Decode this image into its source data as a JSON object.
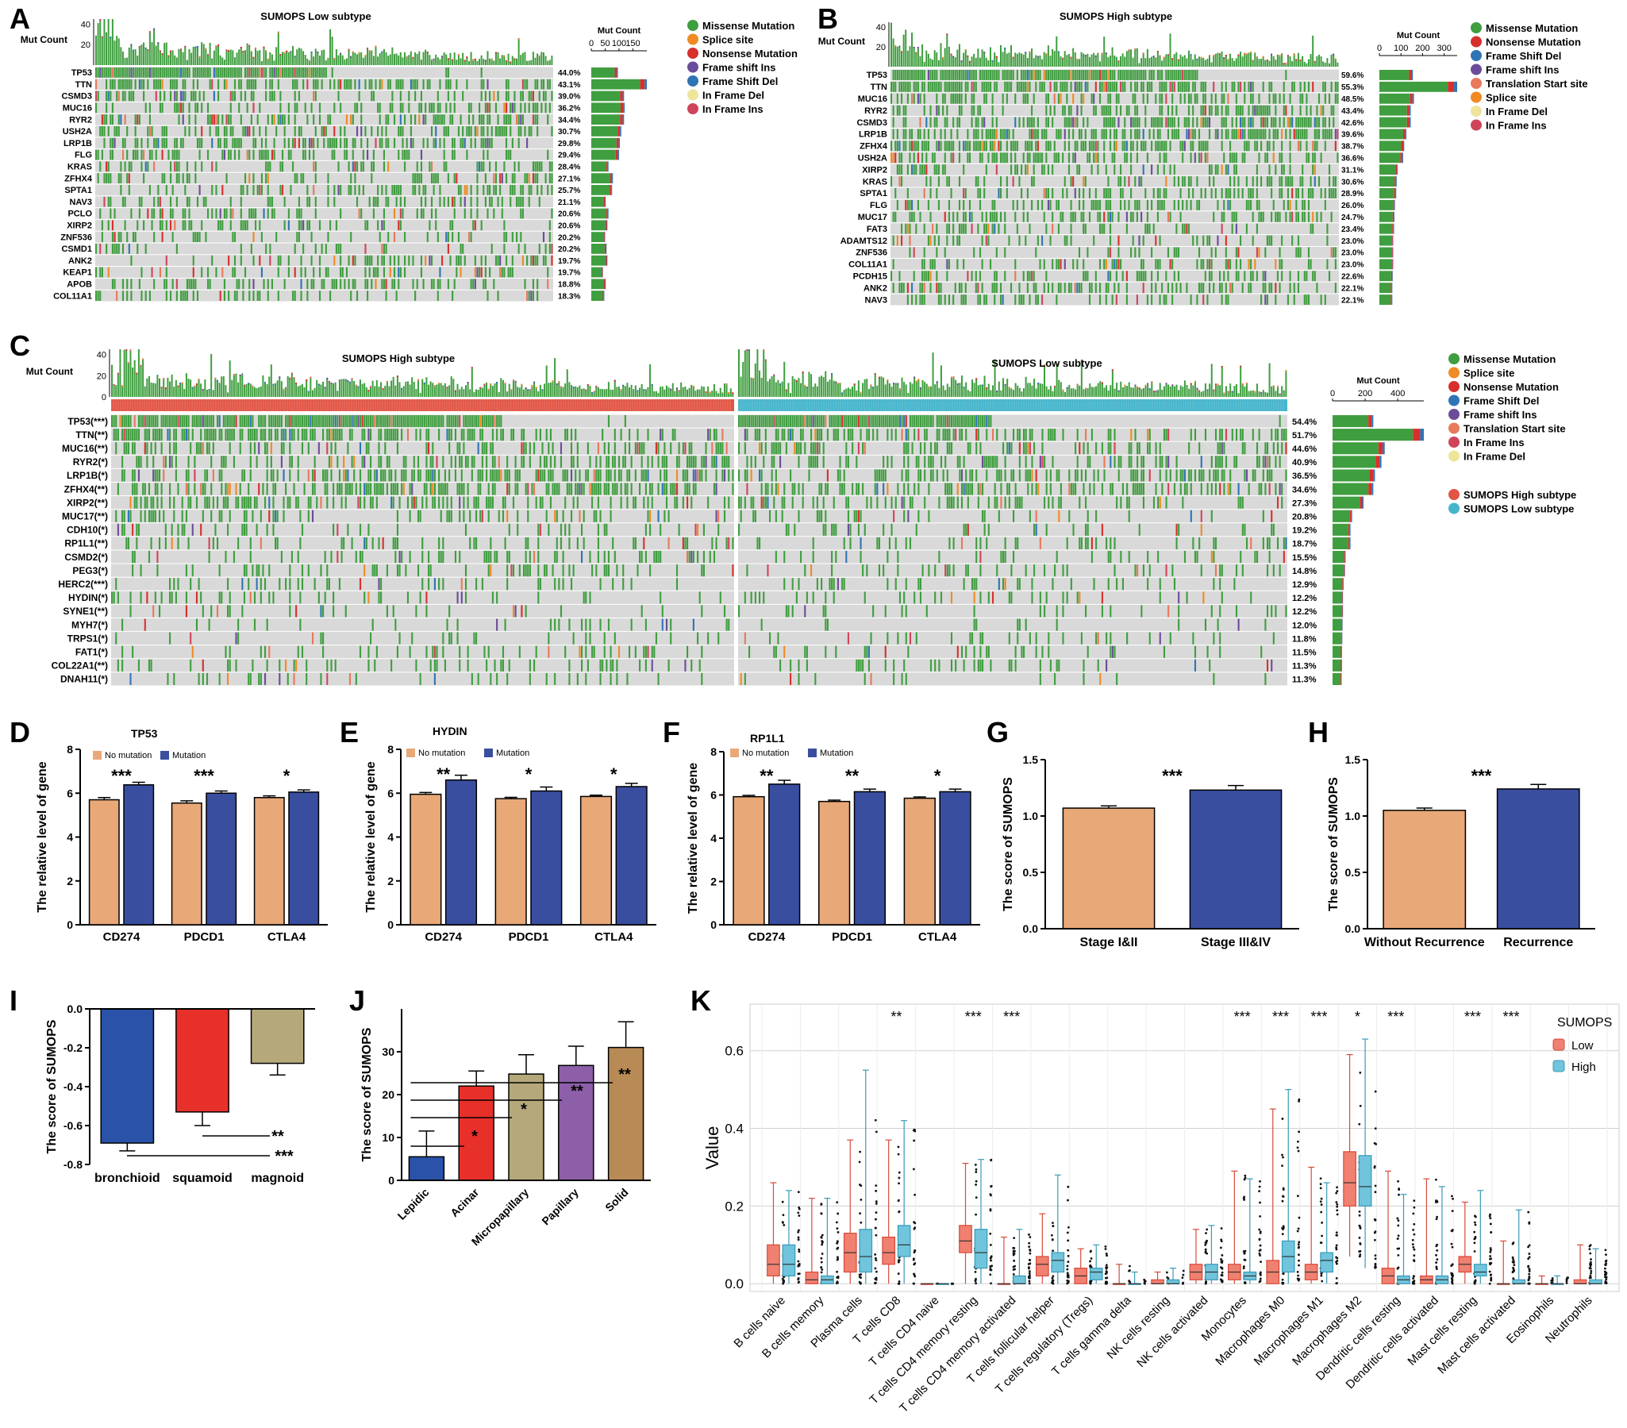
{
  "colors": {
    "missense": "#3f9e3f",
    "nonsense": "#d7302c",
    "splice": "#f08a24",
    "frame_shift_del": "#2f74b5",
    "frame_shift_ins": "#6b4c9a",
    "in_frame_del": "#efe49c",
    "in_frame_ins": "#d0445a",
    "translation_start": "#e8795a",
    "cell_bg": "#d9d9d9",
    "subtype_high": "#e15545",
    "subtype_low": "#45b5cc",
    "bar_orange": "#e8a878",
    "bar_blue": "#3a4ea0",
    "box_low": "#f08070",
    "box_high": "#70c4dc"
  },
  "chart_data": [
    {
      "panel": "A",
      "type": "oncoplot",
      "title": "SUMOPS Low subtype",
      "ylabel": "Mut Count",
      "top_ticks": [
        "40",
        "20"
      ],
      "count_axis_title": "Mut Count",
      "count_ticks": [
        "0",
        "50",
        "100",
        "150"
      ],
      "count_max": 200,
      "genes": [
        "TP53",
        "TTN",
        "CSMD3",
        "MUC16",
        "RYR2",
        "USH2A",
        "LRP1B",
        "FLG",
        "KRAS",
        "ZFHX4",
        "SPTA1",
        "NAV3",
        "PCLO",
        "XIRP2",
        "ZNF536",
        "CSMD1",
        "ANK2",
        "KEAP1",
        "APOB",
        "COL11A1"
      ],
      "percents": [
        "44.0%",
        "43.1%",
        "39.0%",
        "36.2%",
        "34.4%",
        "30.7%",
        "29.8%",
        "29.4%",
        "28.4%",
        "27.1%",
        "25.7%",
        "21.1%",
        "20.6%",
        "20.6%",
        "20.2%",
        "20.2%",
        "19.7%",
        "19.7%",
        "18.8%",
        "18.3%"
      ],
      "counts": [
        96,
        200,
        118,
        120,
        118,
        108,
        103,
        100,
        62,
        78,
        75,
        52,
        62,
        58,
        50,
        55,
        58,
        42,
        52,
        47
      ],
      "legend": [
        "Missense Mutation",
        "Splice site",
        "Nonsense Mutation",
        "Frame shift Ins",
        "Frame Shift Del",
        "In Frame Del",
        "In Frame Ins"
      ]
    },
    {
      "panel": "B",
      "type": "oncoplot",
      "title": "SUMOPS High subtype",
      "ylabel": "Mut Count",
      "top_ticks": [
        "40",
        "20"
      ],
      "count_axis_title": "Mut Count",
      "count_ticks": [
        "0",
        "100",
        "200",
        "300"
      ],
      "count_max": 360,
      "genes": [
        "TP53",
        "TTN",
        "MUC16",
        "RYR2",
        "CSMD3",
        "LRP1B",
        "ZFHX4",
        "USH2A",
        "XIRP2",
        "KRAS",
        "SPTA1",
        "FLG",
        "MUC17",
        "FAT3",
        "ADAMTS12",
        "ZNF536",
        "COL11A1",
        "PCDH15",
        "ANK2",
        "NAV3"
      ],
      "percents": [
        "59.6%",
        "55.3%",
        "48.5%",
        "43.4%",
        "42.6%",
        "39.6%",
        "38.7%",
        "36.6%",
        "31.1%",
        "30.6%",
        "28.9%",
        "26.0%",
        "24.7%",
        "23.4%",
        "23.0%",
        "23.0%",
        "23.0%",
        "22.6%",
        "22.1%",
        "22.1%"
      ],
      "counts": [
        155,
        360,
        160,
        145,
        145,
        125,
        115,
        110,
        85,
        80,
        78,
        72,
        70,
        68,
        64,
        64,
        64,
        62,
        60,
        60
      ],
      "legend": [
        "Missense Mutation",
        "Nonsense Mutation",
        "Frame Shift Del",
        "Frame shift Ins",
        "Translation Start site",
        "Splice site",
        "In Frame Del",
        "In Frame Ins"
      ]
    },
    {
      "panel": "C",
      "type": "oncoplot",
      "titles": [
        "SUMOPS High subtype",
        "SUMOPS Low subtype"
      ],
      "ylabel": "Mut Count",
      "top_ticks": [
        "40",
        "20",
        "0"
      ],
      "count_axis_title": "Mut Count",
      "count_ticks": [
        "0",
        "200",
        "400"
      ],
      "count_max": 560,
      "genes": [
        "TP53(***)",
        "TTN(**)",
        "MUC16(**)",
        "RYR2(*)",
        "LRP1B(*)",
        "ZFHX4(**)",
        "XIRP2(**)",
        "MUC17(**)",
        "CDH10(*)",
        "RP1L1(**)",
        "CSMD2(*)",
        "PEG3(*)",
        "HERC2(***)",
        "HYDIN(*)",
        "SYNE1(**)",
        "MYH7(*)",
        "TRPS1(*)",
        "FAT1(*)",
        "COL22A1(**)",
        "DNAH11(*)"
      ],
      "percents": [
        "54.4%",
        "51.7%",
        "44.6%",
        "40.9%",
        "36.5%",
        "34.6%",
        "27.3%",
        "20.8%",
        "19.2%",
        "18.7%",
        "15.5%",
        "14.8%",
        "12.9%",
        "12.2%",
        "12.2%",
        "12.0%",
        "11.8%",
        "11.5%",
        "11.3%",
        "11.3%"
      ],
      "counts": [
        250,
        560,
        320,
        300,
        260,
        250,
        190,
        120,
        110,
        110,
        80,
        76,
        68,
        64,
        64,
        62,
        60,
        58,
        58,
        56
      ],
      "legend": [
        "Missense Mutation",
        "Splice site",
        "Nonsense Mutation",
        "Frame Shift Del",
        "Frame shift Ins",
        "Translation Start site",
        "In Frame Ins",
        "In Frame Del"
      ],
      "subtype_legend": [
        "SUMOPS High subtype",
        "SUMOPS Low subtype"
      ]
    },
    {
      "panel": "D",
      "type": "bar",
      "title": "TP53",
      "ylabel": "The relative level of gene",
      "ylim": [
        0,
        8
      ],
      "yticks": [
        "0",
        "2",
        "4",
        "6",
        "8"
      ],
      "categories": [
        "CD274",
        "PDCD1",
        "CTLA4"
      ],
      "series": [
        {
          "name": "No mutation",
          "values": [
            5.7,
            5.55,
            5.8
          ],
          "errors": [
            0.1,
            0.1,
            0.08
          ]
        },
        {
          "name": "Mutation",
          "values": [
            6.38,
            6.0,
            6.05
          ],
          "errors": [
            0.12,
            0.1,
            0.1
          ]
        }
      ],
      "significance": [
        "***",
        "***",
        "*"
      ]
    },
    {
      "panel": "E",
      "type": "bar",
      "title": "HYDIN",
      "ylabel": "The relative level of gene",
      "ylim": [
        0,
        8
      ],
      "yticks": [
        "0",
        "2",
        "4",
        "6",
        "8"
      ],
      "categories": [
        "CD274",
        "PDCD1",
        "CTLA4"
      ],
      "series": [
        {
          "name": "No mutation",
          "values": [
            5.95,
            5.75,
            5.85
          ],
          "errors": [
            0.08,
            0.06,
            0.06
          ]
        },
        {
          "name": "Mutation",
          "values": [
            6.6,
            6.1,
            6.3
          ],
          "errors": [
            0.22,
            0.18,
            0.15
          ]
        }
      ],
      "significance": [
        "**",
        "*",
        "*"
      ]
    },
    {
      "panel": "F",
      "type": "bar",
      "title": "RP1L1",
      "ylabel": "The relative level of gene",
      "ylim": [
        0,
        8
      ],
      "yticks": [
        "0",
        "2",
        "4",
        "6",
        "8"
      ],
      "categories": [
        "CD274",
        "PDCD1",
        "CTLA4"
      ],
      "series": [
        {
          "name": "No mutation",
          "values": [
            5.92,
            5.7,
            5.85
          ],
          "errors": [
            0.06,
            0.06,
            0.06
          ]
        },
        {
          "name": "Mutation",
          "values": [
            6.5,
            6.15,
            6.15
          ],
          "errors": [
            0.18,
            0.12,
            0.12
          ]
        }
      ],
      "significance": [
        "**",
        "**",
        "*"
      ]
    },
    {
      "panel": "G",
      "type": "bar",
      "ylabel": "The score of SUMOPS",
      "ylim": [
        0,
        1.5
      ],
      "yticks": [
        "0.0",
        "0.5",
        "1.0",
        "1.5"
      ],
      "categories": [
        "Stage I&II",
        "Stage III&IV"
      ],
      "values": [
        1.07,
        1.23
      ],
      "errors": [
        0.02,
        0.04
      ],
      "significance": "***"
    },
    {
      "panel": "H",
      "type": "bar",
      "ylabel": "The score of SUMOPS",
      "ylim": [
        0,
        1.5
      ],
      "yticks": [
        "0.0",
        "0.5",
        "1.0",
        "1.5"
      ],
      "categories": [
        "Without Recurrence",
        "Recurrence"
      ],
      "values": [
        1.05,
        1.24
      ],
      "errors": [
        0.02,
        0.04
      ],
      "significance": "***"
    },
    {
      "panel": "I",
      "type": "bar",
      "ylabel": "The score of SUMOPS",
      "ylim": [
        -0.8,
        0.0
      ],
      "yticks": [
        "0.0",
        "-0.2",
        "-0.4",
        "-0.6",
        "-0.8"
      ],
      "categories": [
        "bronchioid",
        "squamoid",
        "magnoid"
      ],
      "values": [
        -0.69,
        -0.53,
        -0.28
      ],
      "errors": [
        0.04,
        0.07,
        0.06
      ],
      "significance": [
        "**",
        "***"
      ]
    },
    {
      "panel": "J",
      "type": "bar",
      "ylabel": "The score of SUMOPS",
      "ylim": [
        0,
        40
      ],
      "yticks": [
        "0",
        "10",
        "20",
        "30"
      ],
      "categories": [
        "Lepidic",
        "Acinar",
        "Micropapillary",
        "Papillary",
        "Solid"
      ],
      "values": [
        5.5,
        22,
        24.8,
        26.8,
        31
      ],
      "errors": [
        6,
        3.5,
        4.5,
        4.5,
        6
      ],
      "significance": [
        "*",
        "*",
        "**",
        "**"
      ]
    },
    {
      "panel": "K",
      "type": "box",
      "ylabel": "Value",
      "ylim": [
        -0.02,
        0.72
      ],
      "yticks": [
        "0.0",
        "0.2",
        "0.4",
        "0.6"
      ],
      "legend_title": "SUMOPS",
      "series_names": [
        "Low",
        "High"
      ],
      "categories": [
        "B cells naive",
        "B cells memory",
        "Plasma cells",
        "T cells CD8",
        "T cells CD4 naive",
        "T cells CD4 memory resting",
        "T cells CD4 memory activated",
        "T cells follicular helper",
        "T cells regulatory (Tregs)",
        "T cells gamma delta",
        "NK cells resting",
        "NK cells activated",
        "Monocytes",
        "Macrophages M0",
        "Macrophages M1",
        "Macrophages M2",
        "Dendritic cells resting",
        "Dendritic cells activated",
        "Mast cells resting",
        "Mast cells activated",
        "Eosinophils",
        "Neutrophils"
      ],
      "significance": [
        "",
        "",
        "",
        "**",
        "",
        "***",
        "***",
        "",
        "",
        "",
        "",
        "",
        "***",
        "***",
        "***",
        "*",
        "***",
        "",
        "***",
        "***",
        "",
        ""
      ],
      "low": [
        [
          0.0,
          0.02,
          0.05,
          0.1,
          0.26
        ],
        [
          0.0,
          0.0,
          0.01,
          0.03,
          0.22
        ],
        [
          0.0,
          0.03,
          0.08,
          0.13,
          0.37
        ],
        [
          0.0,
          0.05,
          0.08,
          0.12,
          0.37
        ],
        [
          0.0,
          0.0,
          0.0,
          0.0,
          0.0
        ],
        [
          0.0,
          0.08,
          0.11,
          0.15,
          0.31
        ],
        [
          0.0,
          0.0,
          0.0,
          0.0,
          0.12
        ],
        [
          0.0,
          0.02,
          0.05,
          0.07,
          0.18
        ],
        [
          0.0,
          0.0,
          0.02,
          0.04,
          0.09
        ],
        [
          0.0,
          0.0,
          0.0,
          0.0,
          0.05
        ],
        [
          0.0,
          0.0,
          0.0,
          0.01,
          0.03
        ],
        [
          0.0,
          0.01,
          0.03,
          0.05,
          0.14
        ],
        [
          0.0,
          0.01,
          0.03,
          0.05,
          0.29
        ],
        [
          0.0,
          0.0,
          0.03,
          0.06,
          0.45
        ],
        [
          0.0,
          0.01,
          0.03,
          0.05,
          0.3
        ],
        [
          0.07,
          0.2,
          0.26,
          0.34,
          0.59
        ],
        [
          0.0,
          0.0,
          0.02,
          0.04,
          0.29
        ],
        [
          0.0,
          0.0,
          0.01,
          0.02,
          0.27
        ],
        [
          0.0,
          0.03,
          0.05,
          0.07,
          0.21
        ],
        [
          0.0,
          0.0,
          0.0,
          0.0,
          0.11
        ],
        [
          0.0,
          0.0,
          0.0,
          0.0,
          0.02
        ],
        [
          0.0,
          0.0,
          0.0,
          0.01,
          0.1
        ]
      ],
      "high": [
        [
          0.0,
          0.02,
          0.05,
          0.1,
          0.24
        ],
        [
          0.0,
          0.0,
          0.01,
          0.02,
          0.22
        ],
        [
          0.0,
          0.03,
          0.07,
          0.14,
          0.55
        ],
        [
          0.0,
          0.07,
          0.1,
          0.15,
          0.42
        ],
        [
          0.0,
          0.0,
          0.0,
          0.0,
          0.0
        ],
        [
          0.0,
          0.04,
          0.08,
          0.14,
          0.32
        ],
        [
          0.0,
          0.0,
          0.0,
          0.02,
          0.14
        ],
        [
          0.0,
          0.03,
          0.06,
          0.08,
          0.28
        ],
        [
          0.0,
          0.01,
          0.03,
          0.04,
          0.1
        ],
        [
          0.0,
          0.0,
          0.0,
          0.0,
          0.03
        ],
        [
          0.0,
          0.0,
          0.0,
          0.01,
          0.04
        ],
        [
          0.0,
          0.01,
          0.03,
          0.05,
          0.15
        ],
        [
          0.0,
          0.01,
          0.02,
          0.03,
          0.27
        ],
        [
          0.0,
          0.03,
          0.07,
          0.11,
          0.5
        ],
        [
          0.0,
          0.03,
          0.06,
          0.08,
          0.26
        ],
        [
          0.04,
          0.2,
          0.25,
          0.33,
          0.63
        ],
        [
          0.0,
          0.0,
          0.01,
          0.02,
          0.23
        ],
        [
          0.0,
          0.0,
          0.01,
          0.02,
          0.25
        ],
        [
          0.0,
          0.02,
          0.03,
          0.05,
          0.24
        ],
        [
          0.0,
          0.0,
          0.0,
          0.01,
          0.19
        ],
        [
          0.0,
          0.0,
          0.0,
          0.0,
          0.02
        ],
        [
          0.0,
          0.0,
          0.0,
          0.01,
          0.09
        ]
      ]
    }
  ]
}
